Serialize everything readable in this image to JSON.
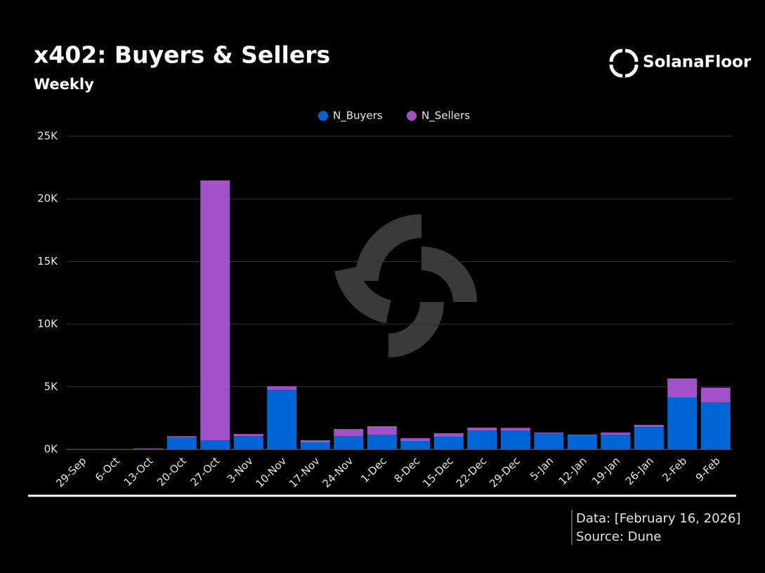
{
  "chart_data": {
    "type": "stacked_bar",
    "title": "x402: Buyers & Sellers",
    "subtitle": "Weekly",
    "brand": "SolanaFloor",
    "footer": [
      "Data: [February 16, 2026]",
      "Source: Dune"
    ],
    "categories": [
      "29-Sep",
      "6-Oct",
      "13-Oct",
      "20-Oct",
      "27-Oct",
      "3-Nov",
      "10-Nov",
      "17-Nov",
      "24-Nov",
      "1-Dec",
      "8-Dec",
      "15-Dec",
      "22-Dec",
      "29-Dec",
      "5-Jan",
      "12-Jan",
      "19-Jan",
      "26-Jan",
      "2-Feb",
      "9-Feb"
    ],
    "series": [
      {
        "name": "N_Buyers",
        "color": "#0066d6",
        "values": [
          20,
          20,
          30,
          950,
          730,
          1060,
          4760,
          560,
          1060,
          1180,
          670,
          1010,
          1510,
          1500,
          1290,
          1120,
          1180,
          1790,
          4150,
          3760
        ]
      },
      {
        "name": "N_Sellers",
        "color": "#a251c9",
        "values": [
          10,
          10,
          50,
          100,
          20740,
          170,
          280,
          170,
          570,
          670,
          230,
          280,
          230,
          220,
          60,
          60,
          170,
          170,
          1510,
          1170
        ]
      }
    ],
    "ylim": [
      0,
      25000
    ],
    "yticks": [
      {
        "value": 0,
        "label": "0K"
      },
      {
        "value": 5000,
        "label": "5K"
      },
      {
        "value": 10000,
        "label": "10K"
      },
      {
        "value": 15000,
        "label": "15K"
      },
      {
        "value": 20000,
        "label": "20K"
      },
      {
        "value": 25000,
        "label": "25K"
      }
    ],
    "grid": true
  }
}
